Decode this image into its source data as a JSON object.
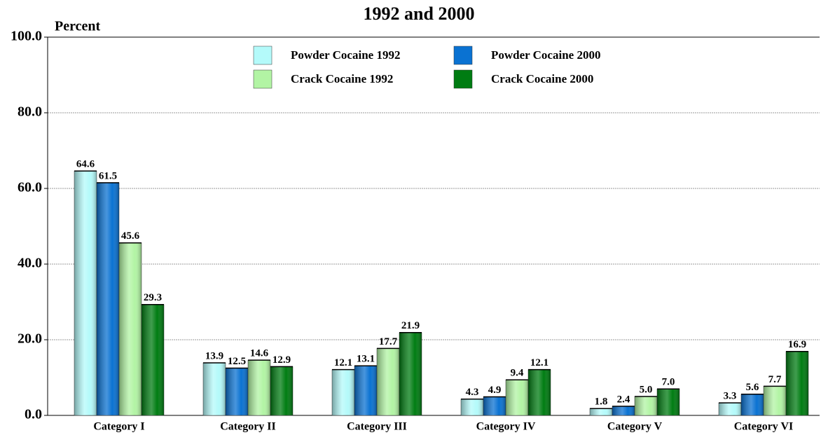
{
  "chart_data": {
    "type": "bar",
    "title": "1992 and 2000",
    "y_label": "Percent",
    "categories": [
      "Category I",
      "Category II",
      "Category III",
      "Category IV",
      "Category V",
      "Category VI"
    ],
    "series": [
      {
        "name": "Powder Cocaine 1992",
        "color": "#b4fafa",
        "values": [
          64.6,
          13.9,
          12.1,
          4.3,
          1.8,
          3.3
        ],
        "value_labels": [
          "64.6",
          "13.9",
          "12.1",
          "4.3",
          "1.8",
          "3.3"
        ]
      },
      {
        "name": "Powder Cocaine 2000",
        "color": "#0a72d2",
        "values": [
          61.5,
          12.5,
          13.1,
          4.9,
          2.4,
          5.6
        ],
        "value_labels": [
          "61.5",
          "12.5",
          "13.1",
          "4.9",
          "2.4",
          "5.6"
        ]
      },
      {
        "name": "Crack Cocaine 1992",
        "color": "#b2f4a4",
        "values": [
          45.6,
          14.6,
          17.7,
          9.4,
          5.0,
          7.7
        ],
        "value_labels": [
          "45.6",
          "14.6",
          "17.7",
          "9.4",
          "5.0",
          "7.7"
        ]
      },
      {
        "name": "Crack Cocaine 2000",
        "color": "#007c12",
        "values": [
          29.3,
          12.9,
          21.9,
          12.1,
          7.0,
          16.9
        ],
        "value_labels": [
          "29.3",
          "12.9",
          "21.9",
          "12.1",
          "7.0",
          "16.9"
        ]
      }
    ],
    "ylim": [
      0,
      100
    ],
    "yticks": [
      {
        "value": 0,
        "label": "0.0"
      },
      {
        "value": 20,
        "label": "20.0"
      },
      {
        "value": 40,
        "label": "40.0"
      },
      {
        "value": 60,
        "label": "60.0"
      },
      {
        "value": 80,
        "label": "80.0"
      },
      {
        "value": 100,
        "label": "100.0"
      }
    ],
    "grid": true,
    "legend": "top"
  }
}
